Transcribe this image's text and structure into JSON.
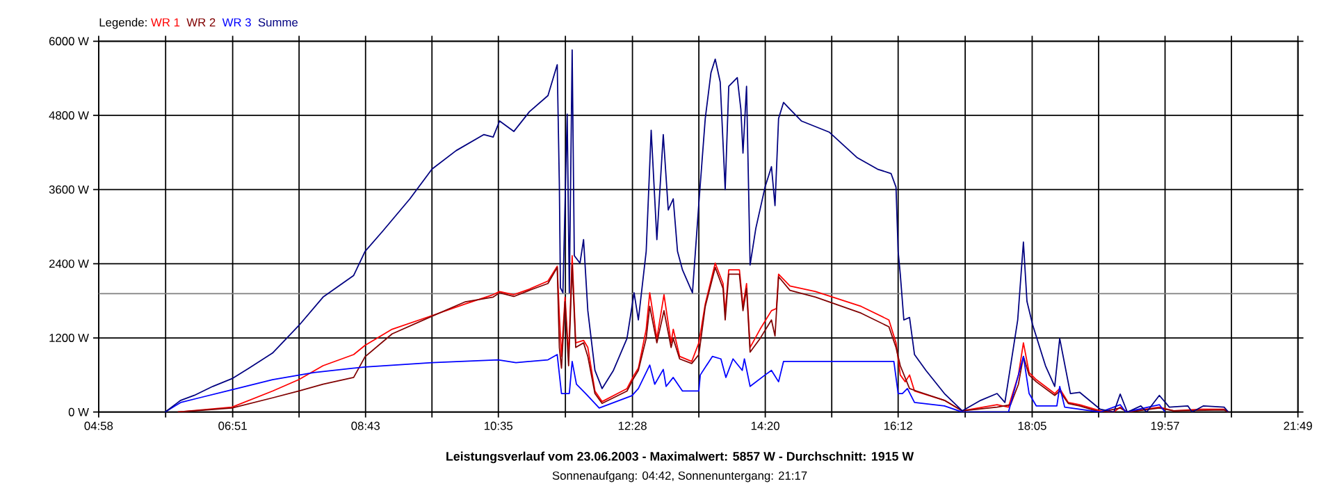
{
  "chart_data": {
    "type": "line",
    "title": "Leistungsverlauf vom 23.06.2003 - Maximalwert: 5857 W - Durchschnitt: 1915 W",
    "subtitle": "Sonnenaufgang: 04:42, Sonnenuntergang: 21:17",
    "legend_title": "Legende:",
    "legend": "top left",
    "grid": true,
    "xlim": [
      4.967,
      21.817
    ],
    "ylim": [
      0,
      6000
    ],
    "xticks": [
      {
        "value": 4.967,
        "label": "04:58"
      },
      {
        "value": 5.908,
        "label": null
      },
      {
        "value": 6.85,
        "label": "06:51"
      },
      {
        "value": 7.783,
        "label": null
      },
      {
        "value": 8.717,
        "label": "08:43"
      },
      {
        "value": 9.65,
        "label": null
      },
      {
        "value": 10.583,
        "label": "10:35"
      },
      {
        "value": 11.525,
        "label": null
      },
      {
        "value": 12.467,
        "label": "12:28"
      },
      {
        "value": 13.4,
        "label": null
      },
      {
        "value": 14.333,
        "label": "14:20"
      },
      {
        "value": 15.267,
        "label": null
      },
      {
        "value": 16.2,
        "label": "16:12"
      },
      {
        "value": 17.142,
        "label": null
      },
      {
        "value": 18.083,
        "label": "18:05"
      },
      {
        "value": 19.017,
        "label": null
      },
      {
        "value": 19.95,
        "label": "19:57"
      },
      {
        "value": 20.883,
        "label": null
      },
      {
        "value": 21.817,
        "label": "21:49"
      }
    ],
    "yticks": [
      {
        "value": 0,
        "label": "0 W"
      },
      {
        "value": 1200,
        "label": "1200 W"
      },
      {
        "value": 2400,
        "label": "2400 W"
      },
      {
        "value": 3600,
        "label": "3600 W"
      },
      {
        "value": 4800,
        "label": "4800 W"
      },
      {
        "value": 6000,
        "label": "6000 W"
      }
    ],
    "ref_lines": [
      {
        "axis": "y",
        "value": 1915,
        "color": "#808080"
      }
    ],
    "series": [
      {
        "name": "WR 1",
        "color": "#ff0000",
        "x": [
          6.08,
          6.84,
          7.41,
          7.78,
          8.12,
          8.55,
          8.71,
          9.09,
          9.65,
          10.12,
          10.51,
          10.6,
          10.8,
          11.02,
          11.28,
          11.41,
          11.44,
          11.47,
          11.52,
          11.57,
          11.62,
          11.67,
          11.78,
          11.84,
          11.94,
          12.04,
          12.39,
          12.49,
          12.55,
          12.66,
          12.71,
          12.81,
          12.91,
          13.01,
          13.04,
          13.13,
          13.3,
          13.4,
          13.49,
          13.63,
          13.74,
          13.77,
          13.82,
          13.97,
          14.02,
          14.07,
          14.12,
          14.26,
          14.42,
          14.49,
          14.52,
          14.68,
          15.04,
          15.68,
          16.07,
          16.17,
          16.23,
          16.3,
          16.36,
          16.43,
          16.85,
          17.1,
          17.59,
          17.75,
          17.89,
          17.96,
          18.04,
          18.14,
          18.4,
          18.47,
          18.59,
          18.75,
          19.04,
          19.23,
          19.32,
          19.42,
          19.87,
          20.07,
          20.46,
          20.78,
          20.84
        ],
        "values": [
          0,
          80,
          340,
          525,
          750,
          930,
          1080,
          1340,
          1560,
          1750,
          1900,
          1950,
          1900,
          1990,
          2120,
          2360,
          1560,
          900,
          1860,
          900,
          2530,
          1120,
          1160,
          1045,
          340,
          170,
          380,
          600,
          710,
          1340,
          1930,
          1190,
          1900,
          1120,
          1340,
          900,
          820,
          1120,
          1750,
          2410,
          2080,
          1600,
          2300,
          2300,
          1710,
          2080,
          1045,
          1340,
          1640,
          1675,
          2230,
          2040,
          1950,
          1710,
          1490,
          1120,
          600,
          490,
          600,
          340,
          190,
          20,
          120,
          80,
          600,
          1120,
          640,
          525,
          300,
          380,
          155,
          120,
          20,
          0,
          80,
          0,
          80,
          20,
          45,
          45,
          0
        ]
      },
      {
        "name": "WR 2",
        "color": "#800000",
        "x": [
          6.08,
          6.84,
          7.41,
          7.78,
          8.12,
          8.55,
          8.71,
          9.09,
          9.65,
          10.12,
          10.51,
          10.6,
          10.8,
          11.02,
          11.28,
          11.41,
          11.44,
          11.47,
          11.52,
          11.57,
          11.62,
          11.67,
          11.78,
          11.84,
          11.94,
          12.04,
          12.39,
          12.49,
          12.55,
          12.66,
          12.71,
          12.81,
          12.91,
          13.01,
          13.04,
          13.13,
          13.3,
          13.4,
          13.49,
          13.63,
          13.74,
          13.77,
          13.82,
          13.97,
          14.02,
          14.07,
          14.12,
          14.26,
          14.42,
          14.47,
          14.52,
          14.68,
          15.04,
          15.68,
          16.07,
          16.17,
          16.23,
          16.36,
          16.46,
          16.85,
          17.1,
          17.59,
          17.78,
          17.89,
          17.96,
          18.04,
          18.14,
          18.4,
          18.47,
          18.59,
          18.75,
          19.04,
          19.32,
          19.42,
          19.87,
          20.07,
          20.78,
          20.84
        ],
        "values": [
          0,
          65,
          230,
          340,
          450,
          560,
          895,
          1265,
          1550,
          1785,
          1860,
          1930,
          1870,
          1970,
          2080,
          2340,
          1045,
          710,
          1785,
          750,
          2380,
          1045,
          1120,
          900,
          300,
          140,
          340,
          560,
          675,
          1190,
          1710,
          1120,
          1640,
          1045,
          1190,
          860,
          785,
          930,
          1710,
          2340,
          2000,
          1490,
          2230,
          2230,
          1640,
          2000,
          970,
          1190,
          1490,
          1230,
          2190,
          1970,
          1860,
          1600,
          1380,
          1045,
          750,
          380,
          340,
          190,
          20,
          80,
          120,
          450,
          900,
          600,
          490,
          270,
          340,
          140,
          100,
          0,
          65,
          0,
          65,
          20,
          35,
          0
        ]
      },
      {
        "name": "WR 3",
        "color": "#0000ff",
        "x": [
          5.9,
          6.12,
          6.38,
          6.84,
          7.41,
          7.99,
          8.71,
          9.65,
          10.58,
          10.83,
          11.28,
          11.41,
          11.47,
          11.49,
          11.58,
          11.62,
          11.68,
          11.81,
          12.0,
          12.46,
          12.55,
          12.71,
          12.78,
          12.9,
          12.94,
          13.04,
          13.17,
          13.4,
          13.42,
          13.59,
          13.71,
          13.78,
          13.88,
          14.01,
          14.04,
          14.12,
          14.33,
          14.42,
          14.52,
          14.59,
          16.14,
          16.2,
          16.26,
          16.33,
          16.43,
          16.85,
          17.1,
          17.75,
          17.89,
          17.96,
          18.04,
          18.14,
          18.43,
          18.47,
          18.54,
          18.91,
          19.04,
          19.32,
          19.4,
          19.87,
          19.95
        ],
        "values": [
          0,
          155,
          230,
          360,
          525,
          640,
          730,
          800,
          845,
          800,
          845,
          930,
          300,
          300,
          300,
          820,
          450,
          300,
          65,
          265,
          380,
          760,
          450,
          690,
          415,
          560,
          340,
          340,
          600,
          900,
          860,
          560,
          860,
          675,
          860,
          415,
          600,
          675,
          490,
          820,
          820,
          300,
          300,
          380,
          155,
          100,
          0,
          0,
          600,
          900,
          300,
          100,
          100,
          415,
          80,
          20,
          0,
          120,
          0,
          120,
          0
        ]
      },
      {
        "name": "Summe",
        "color": "#000080",
        "x": [
          5.9,
          6.12,
          6.31,
          6.57,
          6.84,
          7.08,
          7.41,
          7.78,
          8.12,
          8.55,
          8.71,
          8.96,
          9.34,
          9.65,
          9.99,
          10.38,
          10.51,
          10.6,
          10.8,
          11.02,
          11.28,
          11.41,
          11.44,
          11.455,
          11.49,
          11.55,
          11.58,
          11.62,
          11.65,
          11.73,
          11.78,
          11.84,
          11.94,
          12.04,
          12.2,
          12.39,
          12.49,
          12.55,
          12.66,
          12.73,
          12.81,
          12.9,
          12.97,
          13.04,
          13.1,
          13.17,
          13.31,
          13.4,
          13.49,
          13.57,
          13.63,
          13.7,
          13.77,
          13.82,
          13.94,
          13.99,
          14.02,
          14.07,
          14.12,
          14.2,
          14.33,
          14.42,
          14.47,
          14.52,
          14.59,
          14.68,
          14.84,
          15.23,
          15.62,
          15.91,
          16.1,
          16.17,
          16.2,
          16.23,
          16.28,
          16.36,
          16.43,
          16.59,
          16.85,
          17.1,
          17.36,
          17.59,
          17.7,
          17.88,
          17.96,
          18.01,
          18.09,
          18.27,
          18.4,
          18.47,
          18.62,
          18.75,
          19.04,
          19.23,
          19.32,
          19.42,
          19.61,
          19.69,
          19.87,
          20.01,
          20.27,
          20.33,
          20.49,
          20.78,
          20.84
        ],
        "values": [
          0,
          190,
          270,
          415,
          540,
          710,
          955,
          1400,
          1860,
          2210,
          2600,
          2930,
          3450,
          3930,
          4230,
          4490,
          4450,
          4710,
          4540,
          4860,
          5120,
          5620,
          3670,
          2010,
          1930,
          4820,
          1930,
          5857,
          2530,
          2410,
          2790,
          1640,
          675,
          380,
          675,
          1190,
          1930,
          1490,
          2600,
          4560,
          2790,
          4490,
          3270,
          3450,
          2600,
          2300,
          1930,
          3380,
          4750,
          5490,
          5710,
          5340,
          3600,
          5270,
          5410,
          4900,
          4190,
          5270,
          2380,
          2970,
          3640,
          3970,
          3340,
          4750,
          5010,
          4900,
          4710,
          4530,
          4120,
          3930,
          3860,
          3640,
          2600,
          2230,
          1490,
          1530,
          930,
          675,
          300,
          20,
          190,
          300,
          155,
          1490,
          2750,
          1790,
          1410,
          750,
          415,
          1190,
          300,
          320,
          45,
          0,
          290,
          0,
          100,
          0,
          270,
          80,
          100,
          0,
          100,
          80,
          0
        ]
      }
    ]
  }
}
